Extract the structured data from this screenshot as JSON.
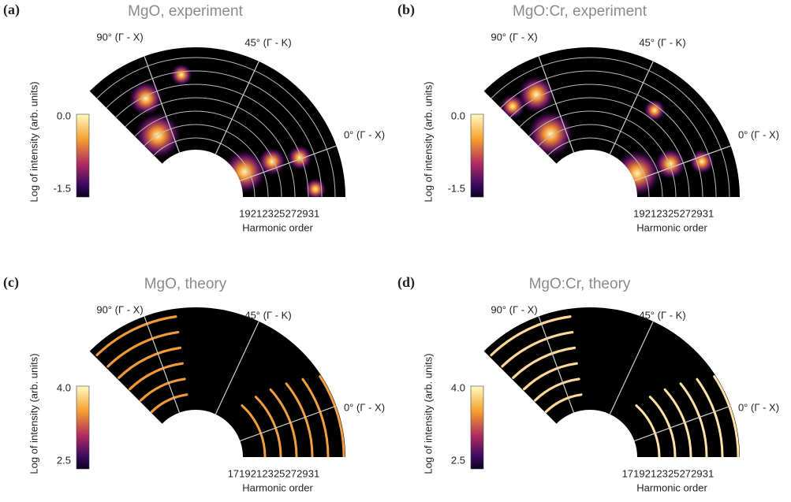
{
  "panels": [
    {
      "label": "(a)",
      "title": "MgO, experiment",
      "angles": [
        "90° (Γ - X)",
        "45° (Γ - K)",
        "0° (Γ - X)"
      ],
      "colorbar": [
        "0.0",
        "-1.5"
      ],
      "ylabel": "Log of intensity (arb. units)",
      "harmonics": [
        "19",
        "21",
        "23",
        "25",
        "27",
        "29",
        "31"
      ],
      "xlabel": "Harmonic order"
    },
    {
      "label": "(b)",
      "title": "MgO:Cr, experiment",
      "angles": [
        "90° (Γ - X)",
        "45° (Γ - K)",
        "0° (Γ - X)"
      ],
      "colorbar": [
        "0.0",
        "-1.5"
      ],
      "ylabel": "Log of intensity (arb. units)",
      "harmonics": [
        "19",
        "21",
        "23",
        "25",
        "27",
        "29",
        "31"
      ],
      "xlabel": "Harmonic order"
    },
    {
      "label": "(c)",
      "title": "MgO, theory",
      "angles": [
        "90° (Γ - X)",
        "45° (Γ - K)",
        "0° (Γ - X)"
      ],
      "colorbar": [
        "4.0",
        "2.5"
      ],
      "ylabel": "Log of intensity (arb. units)",
      "harmonics": [
        "17",
        "19",
        "21",
        "23",
        "25",
        "27",
        "29",
        "31"
      ],
      "xlabel": "Harmonic order"
    },
    {
      "label": "(d)",
      "title": "MgO:Cr, theory",
      "angles": [
        "90° (Γ - X)",
        "45° (Γ - K)",
        "0° (Γ - X)"
      ],
      "colorbar": [
        "4.0",
        "2.5"
      ],
      "ylabel": "Log of intensity (arb. units)",
      "harmonics": [
        "17",
        "19",
        "21",
        "23",
        "25",
        "27",
        "29",
        "31"
      ],
      "xlabel": "Harmonic order"
    }
  ]
}
